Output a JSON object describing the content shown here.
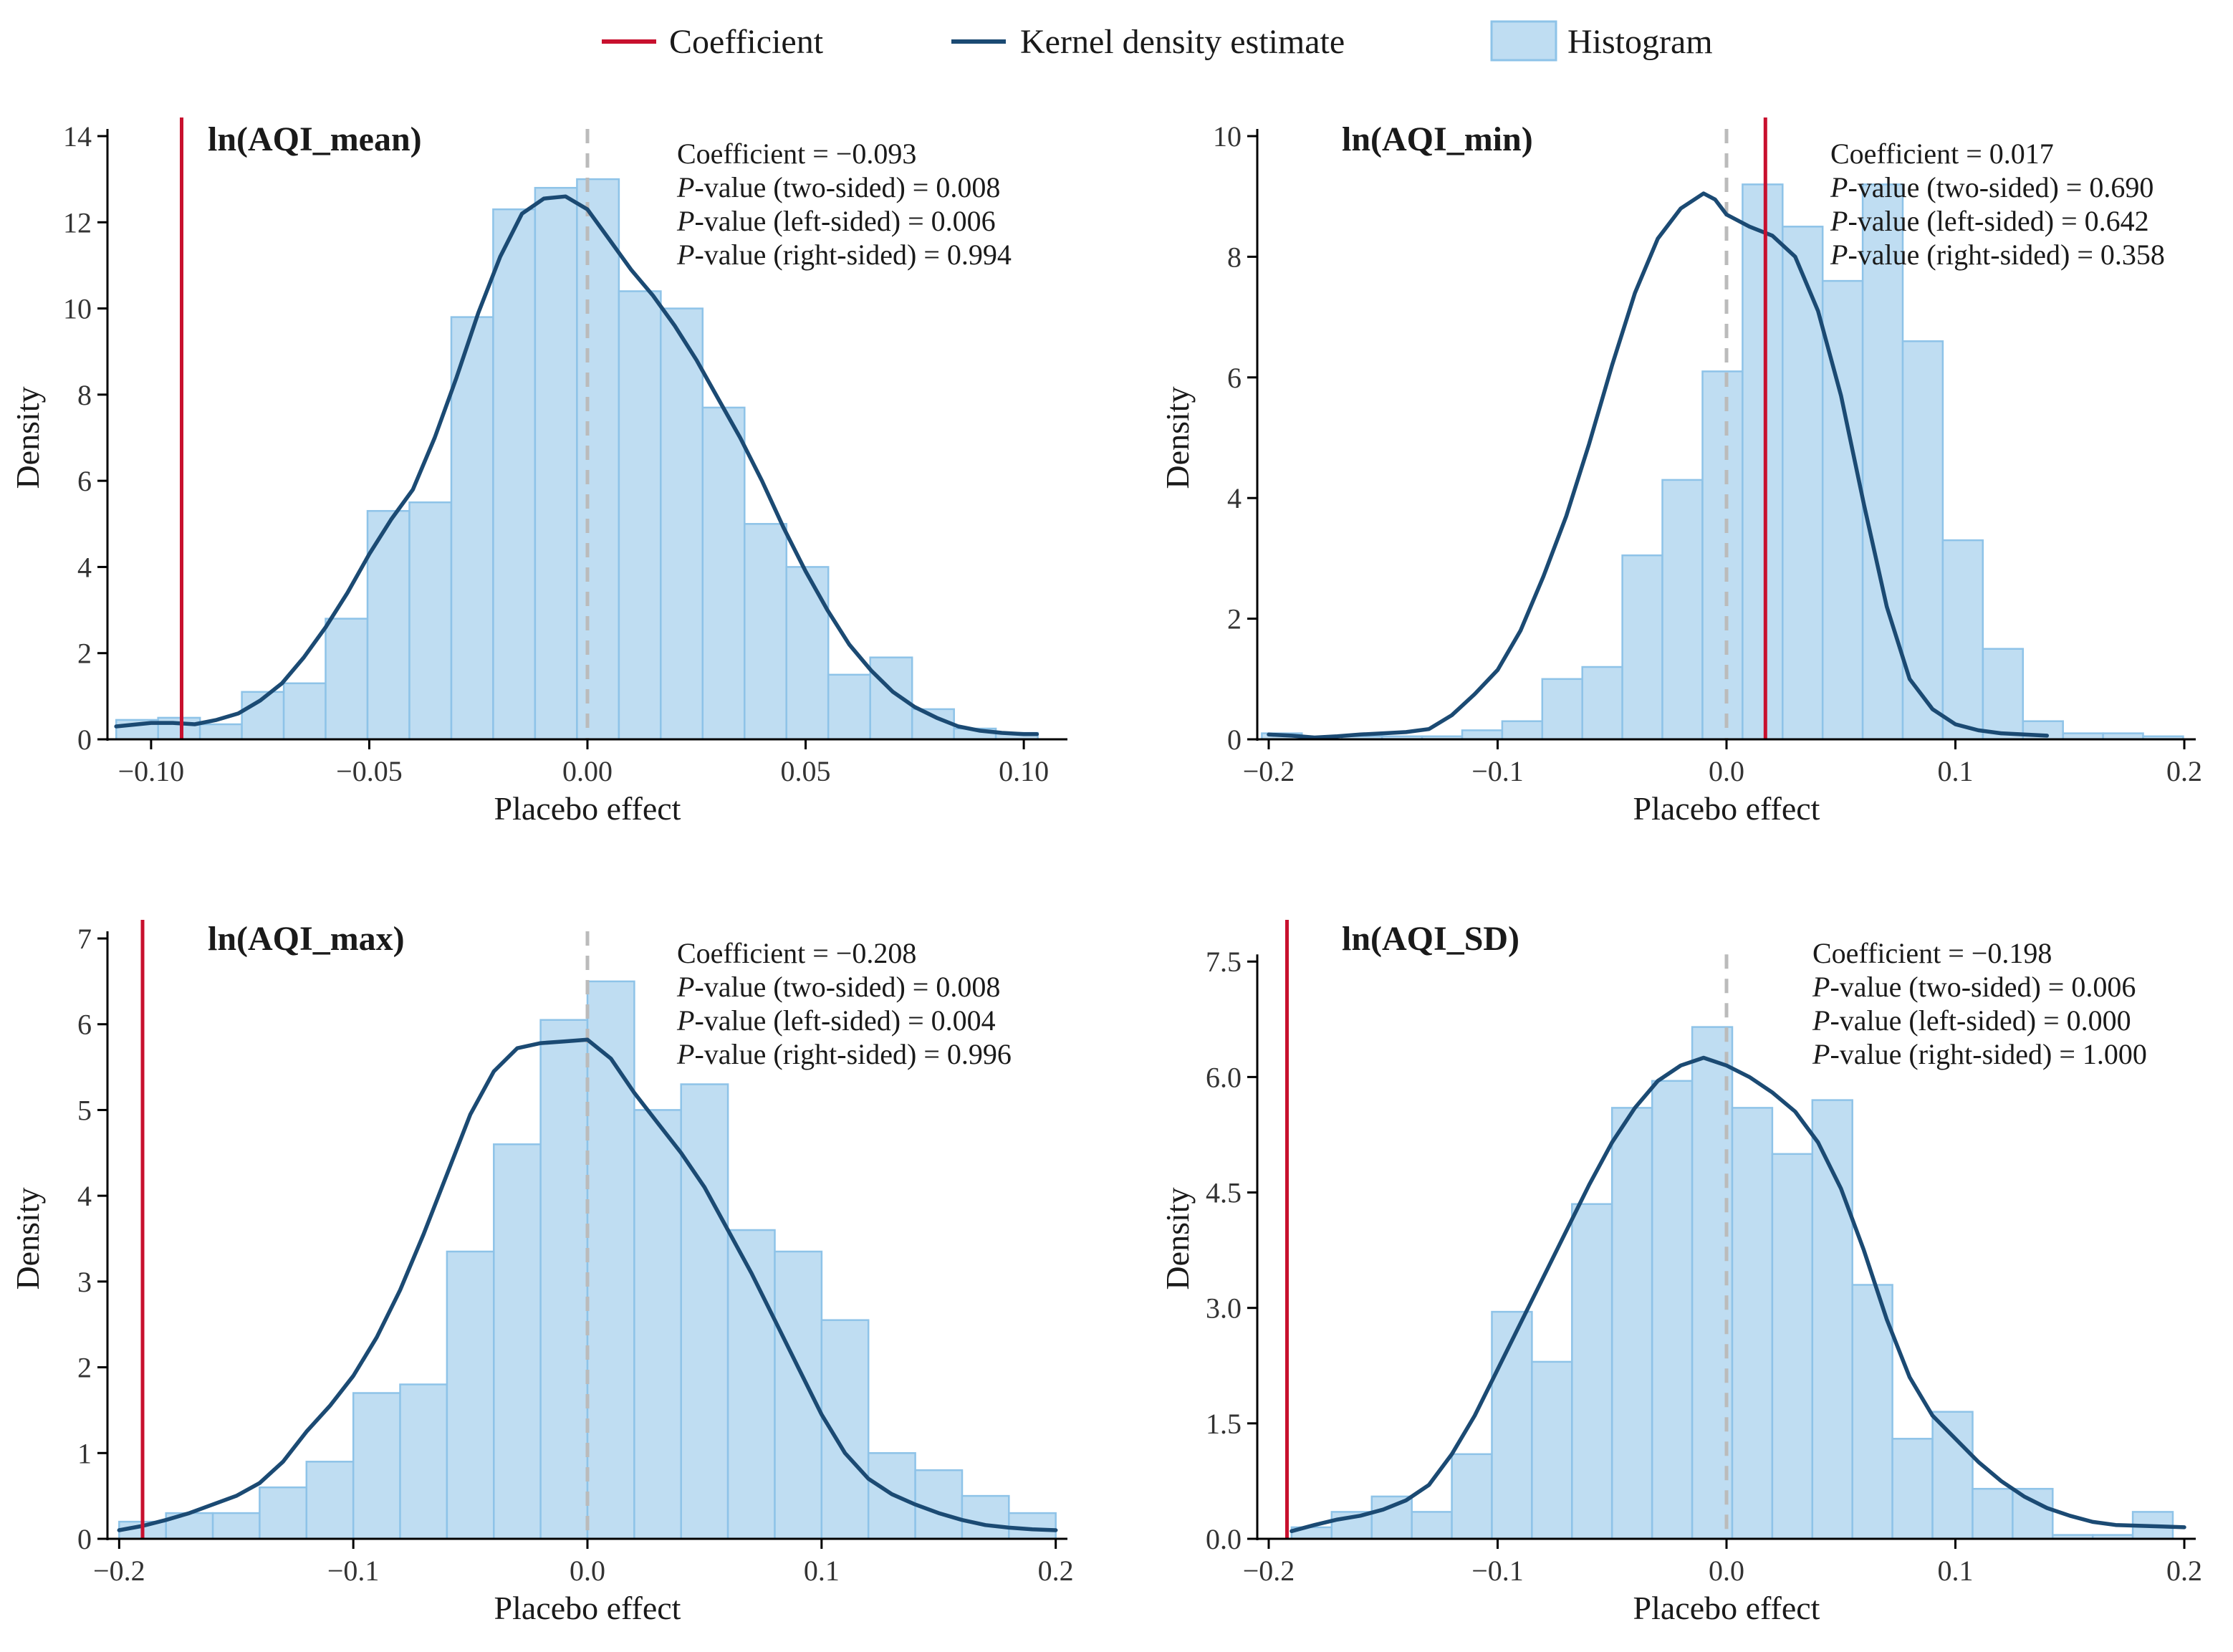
{
  "colors": {
    "coefficient": "#C8102E",
    "kde": "#1B4A73",
    "hist_fill": "#BFDDF2",
    "hist_stroke": "#8EC3E8",
    "zero_line": "#BBBBBB",
    "axis": "#000000"
  },
  "legend": {
    "coefficient": "Coefficient",
    "kde": "Kernel density estimate",
    "histogram": "Histogram"
  },
  "chart_data": [
    {
      "type": "bar",
      "title": "ln(AQI_mean)",
      "xlabel": "Placebo effect",
      "ylabel": "Density",
      "xlim": [
        -0.11,
        0.11
      ],
      "ylim": [
        0,
        14
      ],
      "xticks": [
        -0.1,
        -0.05,
        0.0,
        0.05,
        0.1
      ],
      "xtick_labels": [
        "−0.10",
        "−0.05",
        "0.00",
        "0.05",
        "0.10"
      ],
      "yticks": [
        0,
        2,
        4,
        6,
        8,
        10,
        12,
        14
      ],
      "ytick_labels": [
        "0",
        "2",
        "4",
        "6",
        "8",
        "10",
        "12",
        "14"
      ],
      "coefficient": -0.093,
      "stats": {
        "coef_label": "Coefficient",
        "coef_value": "−0.093",
        "p_two_label": "-value (two-sided)",
        "p_two": "0.008",
        "p_left_label": "-value (left-sided)",
        "p_left": "0.006",
        "p_right_label": "-value (right-sided)",
        "p_right": "0.994"
      },
      "hist_start": -0.108,
      "hist_width": 0.0096,
      "hist_values": [
        0.45,
        0.5,
        0.35,
        1.1,
        1.3,
        2.8,
        5.3,
        5.5,
        9.8,
        12.3,
        12.8,
        13.0,
        10.4,
        10.0,
        7.7,
        5.0,
        4.0,
        1.5,
        1.9,
        0.7,
        0.25,
        0.15
      ],
      "kde": [
        [
          -0.108,
          0.3
        ],
        [
          -0.1,
          0.38
        ],
        [
          -0.095,
          0.38
        ],
        [
          -0.09,
          0.35
        ],
        [
          -0.085,
          0.45
        ],
        [
          -0.08,
          0.6
        ],
        [
          -0.075,
          0.9
        ],
        [
          -0.07,
          1.3
        ],
        [
          -0.065,
          1.9
        ],
        [
          -0.06,
          2.6
        ],
        [
          -0.055,
          3.4
        ],
        [
          -0.05,
          4.3
        ],
        [
          -0.045,
          5.1
        ],
        [
          -0.04,
          5.8
        ],
        [
          -0.035,
          7.0
        ],
        [
          -0.03,
          8.4
        ],
        [
          -0.025,
          9.9
        ],
        [
          -0.02,
          11.2
        ],
        [
          -0.015,
          12.2
        ],
        [
          -0.01,
          12.55
        ],
        [
          -0.005,
          12.6
        ],
        [
          0.0,
          12.3
        ],
        [
          0.005,
          11.6
        ],
        [
          0.01,
          10.9
        ],
        [
          0.015,
          10.3
        ],
        [
          0.02,
          9.6
        ],
        [
          0.025,
          8.8
        ],
        [
          0.03,
          7.9
        ],
        [
          0.035,
          7.0
        ],
        [
          0.04,
          6.0
        ],
        [
          0.045,
          4.9
        ],
        [
          0.05,
          3.9
        ],
        [
          0.055,
          3.0
        ],
        [
          0.06,
          2.2
        ],
        [
          0.065,
          1.6
        ],
        [
          0.07,
          1.1
        ],
        [
          0.075,
          0.75
        ],
        [
          0.08,
          0.5
        ],
        [
          0.085,
          0.3
        ],
        [
          0.09,
          0.2
        ],
        [
          0.095,
          0.15
        ],
        [
          0.1,
          0.12
        ],
        [
          0.103,
          0.12
        ]
      ]
    },
    {
      "type": "bar",
      "title": "ln(AQI_min)",
      "xlabel": "Placebo effect",
      "ylabel": "Density",
      "xlim": [
        -0.205,
        0.205
      ],
      "ylim": [
        0,
        10
      ],
      "xticks": [
        -0.2,
        -0.1,
        0.0,
        0.1,
        0.2
      ],
      "xtick_labels": [
        "−0.2",
        "−0.1",
        "0.0",
        "0.1",
        "0.2"
      ],
      "yticks": [
        0,
        2,
        4,
        6,
        8,
        10
      ],
      "ytick_labels": [
        "0",
        "2",
        "4",
        "6",
        "8",
        "10"
      ],
      "coefficient": 0.017,
      "stats": {
        "coef_label": "Coefficient",
        "coef_value": "0.017",
        "p_two_label": "-value (two-sided)",
        "p_two": "0.690",
        "p_left_label": "-value (left-sided)",
        "p_left": "0.642",
        "p_right_label": "-value (right-sided)",
        "p_right": "0.358"
      },
      "hist_start": -0.203,
      "hist_width": 0.0175,
      "hist_values": [
        0.1,
        0.0,
        0.05,
        0.05,
        0.05,
        0.15,
        0.3,
        1.0,
        1.2,
        3.05,
        4.3,
        6.1,
        9.2,
        8.5,
        7.6,
        9.2,
        6.6,
        3.3,
        1.5,
        0.3,
        0.1,
        0.1,
        0.05
      ],
      "kde": [
        [
          -0.2,
          0.08
        ],
        [
          -0.19,
          0.06
        ],
        [
          -0.18,
          0.03
        ],
        [
          -0.17,
          0.05
        ],
        [
          -0.16,
          0.08
        ],
        [
          -0.15,
          0.1
        ],
        [
          -0.14,
          0.12
        ],
        [
          -0.13,
          0.17
        ],
        [
          -0.12,
          0.4
        ],
        [
          -0.11,
          0.75
        ],
        [
          -0.1,
          1.15
        ],
        [
          -0.09,
          1.8
        ],
        [
          -0.08,
          2.7
        ],
        [
          -0.07,
          3.7
        ],
        [
          -0.06,
          4.9
        ],
        [
          -0.05,
          6.2
        ],
        [
          -0.04,
          7.4
        ],
        [
          -0.03,
          8.3
        ],
        [
          -0.02,
          8.8
        ],
        [
          -0.01,
          9.05
        ],
        [
          -0.005,
          8.95
        ],
        [
          0.0,
          8.7
        ],
        [
          0.01,
          8.5
        ],
        [
          0.02,
          8.35
        ],
        [
          0.03,
          8.0
        ],
        [
          0.04,
          7.1
        ],
        [
          0.05,
          5.7
        ],
        [
          0.06,
          3.9
        ],
        [
          0.07,
          2.2
        ],
        [
          0.08,
          1.0
        ],
        [
          0.09,
          0.5
        ],
        [
          0.1,
          0.25
        ],
        [
          0.11,
          0.15
        ],
        [
          0.12,
          0.1
        ],
        [
          0.13,
          0.08
        ],
        [
          0.14,
          0.06
        ]
      ]
    },
    {
      "type": "bar",
      "title": "ln(AQI_max)",
      "xlabel": "Placebo effect",
      "ylabel": "Density",
      "xlim": [
        -0.205,
        0.205
      ],
      "ylim": [
        0,
        7
      ],
      "xticks": [
        -0.2,
        -0.1,
        0.0,
        0.1,
        0.2
      ],
      "xtick_labels": [
        "−0.2",
        "−0.1",
        "0.0",
        "0.1",
        "0.2"
      ],
      "yticks": [
        0,
        1,
        2,
        3,
        4,
        5,
        6,
        7
      ],
      "ytick_labels": [
        "0",
        "1",
        "2",
        "3",
        "4",
        "5",
        "6",
        "7"
      ],
      "coefficient": -0.208,
      "coefficient_line_x": -0.19,
      "stats": {
        "coef_label": "Coefficient",
        "coef_value": "−0.208",
        "p_two_label": "-value (two-sided)",
        "p_two": "0.008",
        "p_left_label": "-value (left-sided)",
        "p_left": "0.004",
        "p_right_label": "-value (right-sided)",
        "p_right": "0.996"
      },
      "hist_start": -0.2,
      "hist_width": 0.02,
      "hist_values": [
        0.2,
        0.3,
        0.3,
        0.6,
        0.9,
        1.7,
        1.8,
        3.35,
        4.6,
        6.05,
        6.5,
        5.0,
        5.3,
        3.6,
        3.35,
        2.55,
        1.0,
        0.8,
        0.5,
        0.3
      ],
      "kde": [
        [
          -0.2,
          0.1
        ],
        [
          -0.19,
          0.15
        ],
        [
          -0.18,
          0.22
        ],
        [
          -0.17,
          0.3
        ],
        [
          -0.16,
          0.4
        ],
        [
          -0.15,
          0.5
        ],
        [
          -0.14,
          0.65
        ],
        [
          -0.13,
          0.9
        ],
        [
          -0.12,
          1.25
        ],
        [
          -0.11,
          1.55
        ],
        [
          -0.1,
          1.9
        ],
        [
          -0.09,
          2.35
        ],
        [
          -0.08,
          2.9
        ],
        [
          -0.07,
          3.55
        ],
        [
          -0.06,
          4.25
        ],
        [
          -0.05,
          4.95
        ],
        [
          -0.04,
          5.45
        ],
        [
          -0.03,
          5.72
        ],
        [
          -0.02,
          5.78
        ],
        [
          -0.01,
          5.8
        ],
        [
          0.0,
          5.82
        ],
        [
          0.01,
          5.6
        ],
        [
          0.02,
          5.2
        ],
        [
          0.03,
          4.85
        ],
        [
          0.04,
          4.5
        ],
        [
          0.05,
          4.1
        ],
        [
          0.06,
          3.6
        ],
        [
          0.07,
          3.1
        ],
        [
          0.08,
          2.55
        ],
        [
          0.09,
          2.0
        ],
        [
          0.1,
          1.45
        ],
        [
          0.11,
          1.0
        ],
        [
          0.12,
          0.7
        ],
        [
          0.13,
          0.52
        ],
        [
          0.14,
          0.4
        ],
        [
          0.15,
          0.3
        ],
        [
          0.16,
          0.22
        ],
        [
          0.17,
          0.16
        ],
        [
          0.18,
          0.13
        ],
        [
          0.19,
          0.11
        ],
        [
          0.2,
          0.1
        ]
      ]
    },
    {
      "type": "bar",
      "title": "ln(AQI_SD)",
      "xlabel": "Placebo effect",
      "ylabel": "Density",
      "xlim": [
        -0.205,
        0.205
      ],
      "ylim": [
        0,
        7.8
      ],
      "xticks": [
        -0.2,
        -0.1,
        0.0,
        0.1,
        0.2
      ],
      "xtick_labels": [
        "−0.2",
        "−0.1",
        "0.0",
        "0.1",
        "0.2"
      ],
      "yticks": [
        0,
        1.5,
        3.0,
        4.5,
        6.0,
        7.5
      ],
      "ytick_labels": [
        "0.0",
        "1.5",
        "3.0",
        "4.5",
        "6.0",
        "7.5"
      ],
      "coefficient": -0.198,
      "coefficient_line_x": -0.192,
      "stats": {
        "coef_label": "Coefficient",
        "coef_value": "−0.198",
        "p_two_label": "-value (two-sided)",
        "p_two": "0.006",
        "p_left_label": "-value (left-sided)",
        "p_left": "0.000",
        "p_right_label": "-value (right-sided)",
        "p_right": "1.000"
      },
      "hist_start": -0.19,
      "hist_width": 0.0175,
      "hist_values": [
        0.15,
        0.35,
        0.55,
        0.35,
        1.1,
        2.95,
        2.3,
        4.35,
        5.6,
        5.95,
        6.65,
        5.6,
        5.0,
        5.7,
        3.3,
        1.3,
        1.65,
        0.65,
        0.65,
        0.05,
        0.05,
        0.35
      ],
      "kde": [
        [
          -0.19,
          0.1
        ],
        [
          -0.18,
          0.18
        ],
        [
          -0.17,
          0.25
        ],
        [
          -0.16,
          0.3
        ],
        [
          -0.15,
          0.38
        ],
        [
          -0.14,
          0.5
        ],
        [
          -0.13,
          0.7
        ],
        [
          -0.12,
          1.1
        ],
        [
          -0.11,
          1.6
        ],
        [
          -0.1,
          2.2
        ],
        [
          -0.09,
          2.8
        ],
        [
          -0.08,
          3.4
        ],
        [
          -0.07,
          4.0
        ],
        [
          -0.06,
          4.6
        ],
        [
          -0.05,
          5.15
        ],
        [
          -0.04,
          5.6
        ],
        [
          -0.03,
          5.95
        ],
        [
          -0.02,
          6.15
        ],
        [
          -0.01,
          6.25
        ],
        [
          0.0,
          6.15
        ],
        [
          0.01,
          6.0
        ],
        [
          0.02,
          5.8
        ],
        [
          0.03,
          5.55
        ],
        [
          0.04,
          5.15
        ],
        [
          0.05,
          4.55
        ],
        [
          0.06,
          3.75
        ],
        [
          0.07,
          2.85
        ],
        [
          0.08,
          2.1
        ],
        [
          0.09,
          1.6
        ],
        [
          0.1,
          1.3
        ],
        [
          0.11,
          1.0
        ],
        [
          0.12,
          0.75
        ],
        [
          0.13,
          0.55
        ],
        [
          0.14,
          0.4
        ],
        [
          0.15,
          0.3
        ],
        [
          0.16,
          0.22
        ],
        [
          0.17,
          0.18
        ],
        [
          0.18,
          0.17
        ],
        [
          0.19,
          0.16
        ],
        [
          0.2,
          0.15
        ]
      ]
    }
  ]
}
